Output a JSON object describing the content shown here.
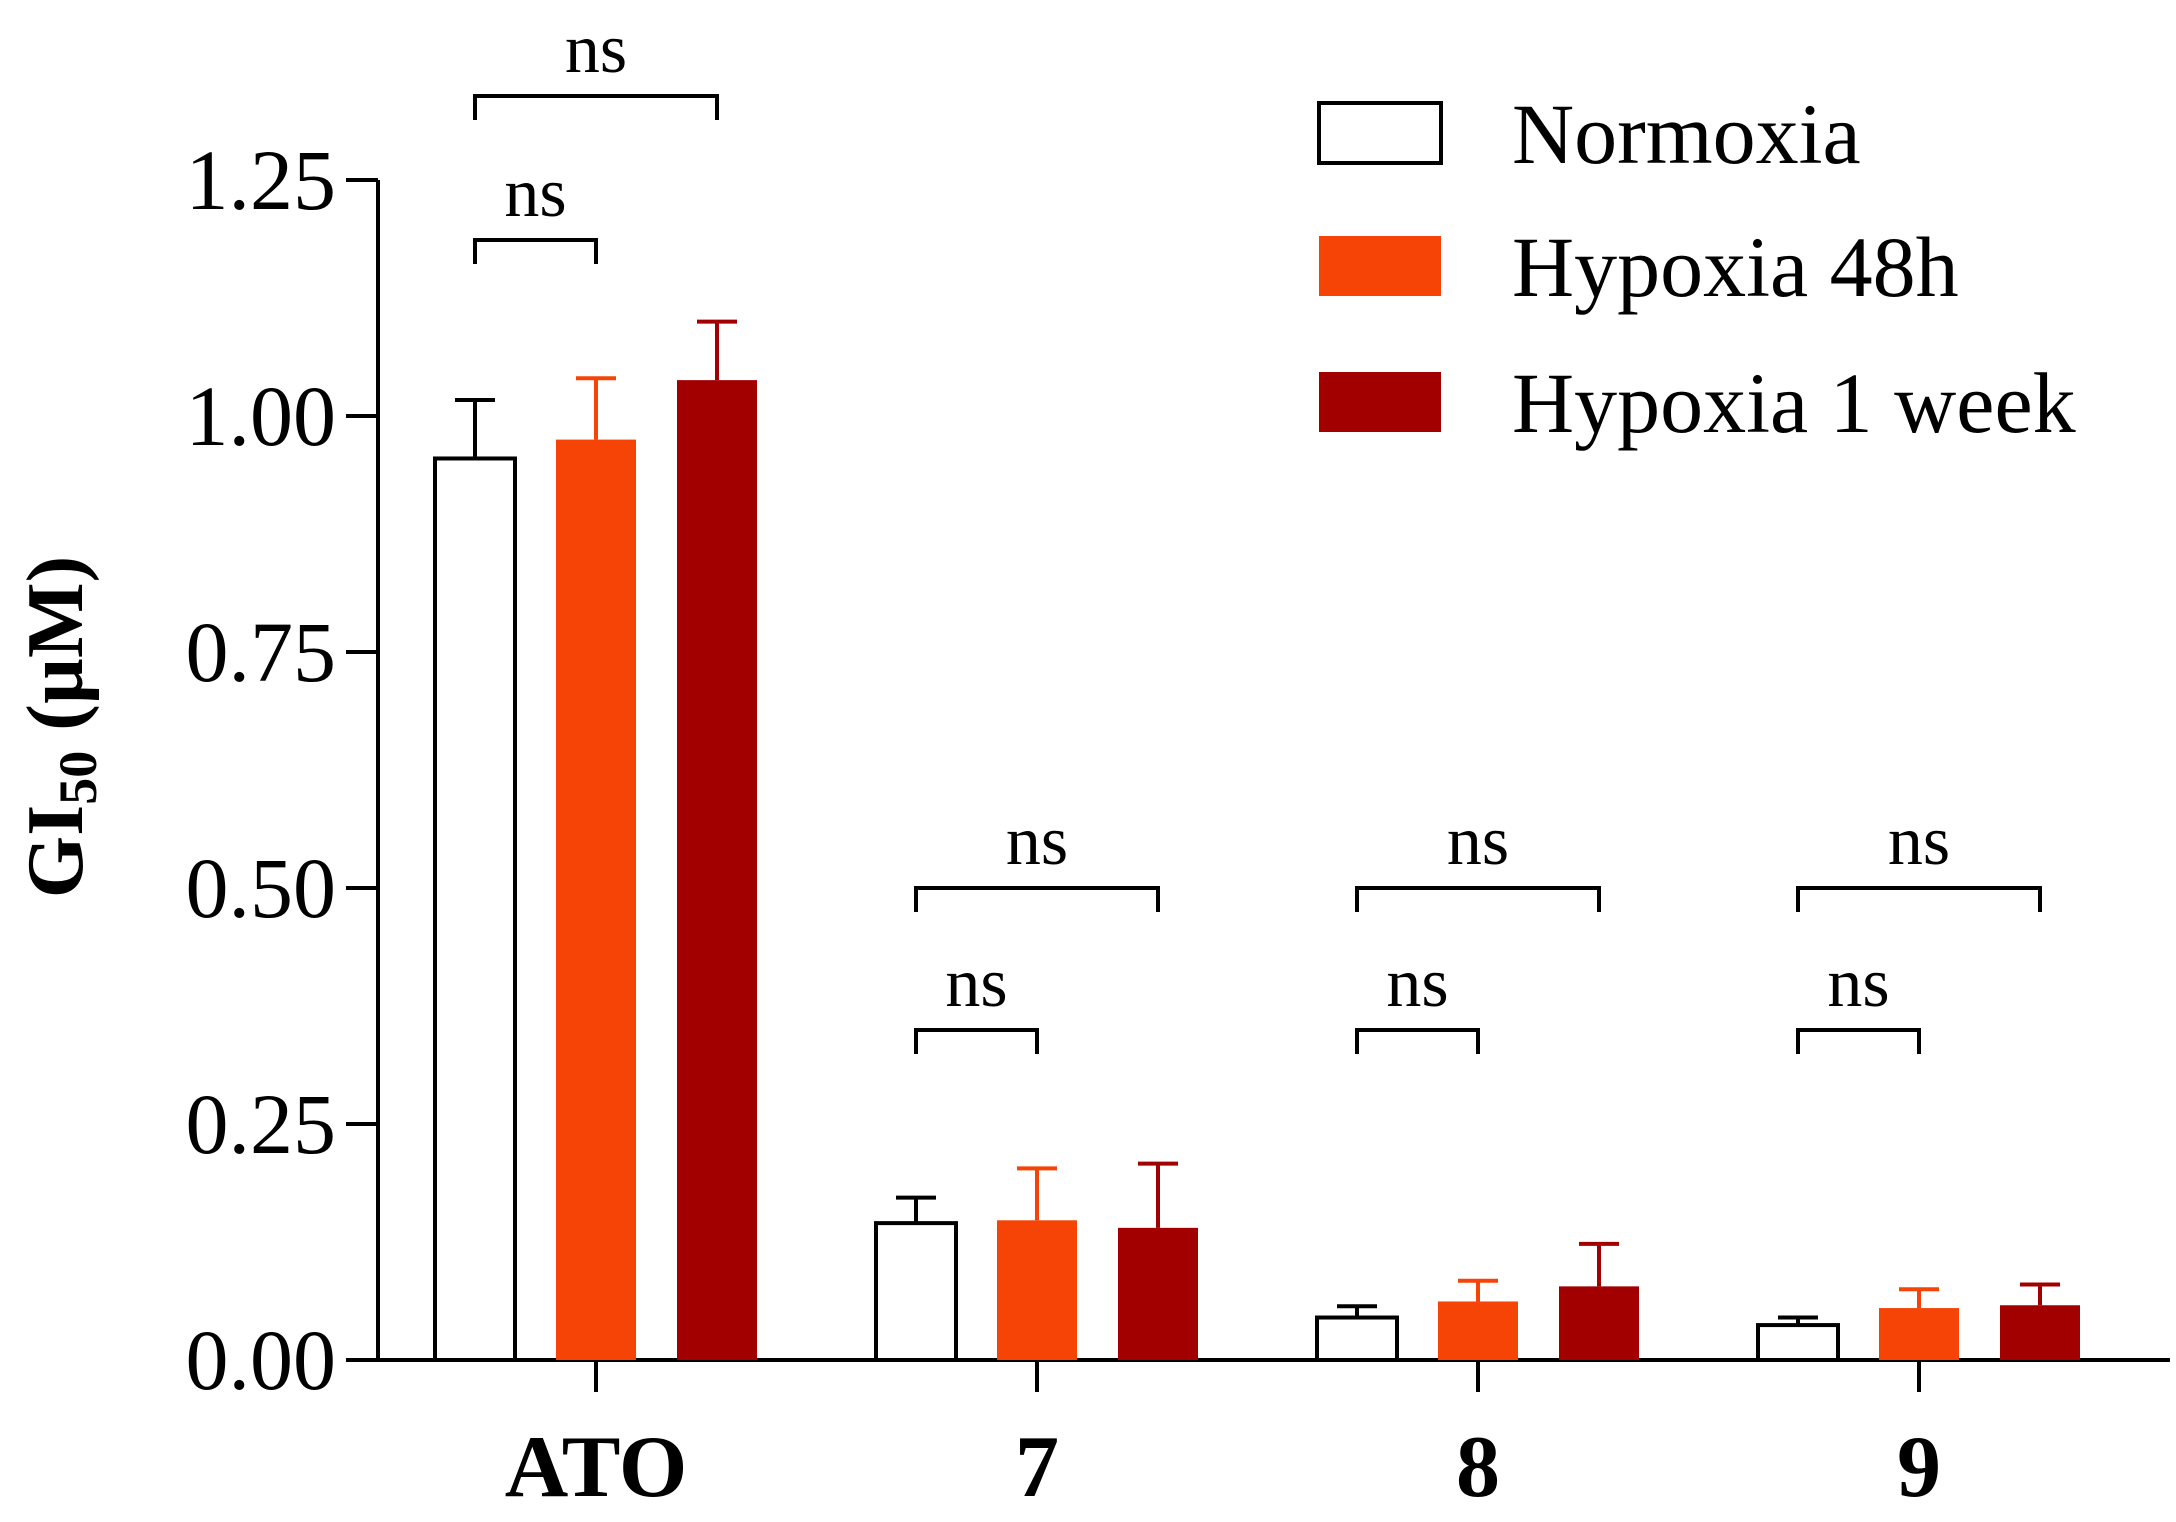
{
  "chart_data": {
    "type": "bar",
    "title": "",
    "xlabel": "",
    "ylabel": "GI50 (µM)",
    "ylabel_parts": {
      "main": "GI",
      "subscript": "50",
      "unit": " (µM)"
    },
    "categories": [
      "ATO",
      "7",
      "8",
      "9"
    ],
    "ylim": [
      0,
      1.25
    ],
    "yticks": [
      0.0,
      0.25,
      0.5,
      0.75,
      1.0,
      1.25
    ],
    "ytick_labels": [
      "0.00",
      "0.25",
      "0.50",
      "0.75",
      "1.00",
      "1.25"
    ],
    "grid": false,
    "legend_position": "top-right",
    "series": [
      {
        "name": "Normoxia",
        "color": "#ffffff",
        "values": [
          0.955,
          0.145,
          0.045,
          0.037
        ],
        "errors": [
          0.062,
          0.027,
          0.012,
          0.008
        ]
      },
      {
        "name": "Hypoxia 48h",
        "color": "#f54405",
        "values": [
          0.975,
          0.148,
          0.062,
          0.055
        ],
        "errors": [
          0.065,
          0.055,
          0.022,
          0.02
        ]
      },
      {
        "name": "Hypoxia 1 week",
        "color": "#a20000",
        "values": [
          1.038,
          0.14,
          0.078,
          0.058
        ],
        "errors": [
          0.062,
          0.068,
          0.045,
          0.022
        ]
      }
    ],
    "annotations": [
      {
        "category": "ATO",
        "from_series": 0,
        "to_series": 1,
        "label": "ns"
      },
      {
        "category": "ATO",
        "from_series": 0,
        "to_series": 2,
        "label": "ns"
      },
      {
        "category": "7",
        "from_series": 0,
        "to_series": 1,
        "label": "ns"
      },
      {
        "category": "7",
        "from_series": 0,
        "to_series": 2,
        "label": "ns"
      },
      {
        "category": "8",
        "from_series": 0,
        "to_series": 1,
        "label": "ns"
      },
      {
        "category": "8",
        "from_series": 0,
        "to_series": 2,
        "label": "ns"
      },
      {
        "category": "9",
        "from_series": 0,
        "to_series": 1,
        "label": "ns"
      },
      {
        "category": "9",
        "from_series": 0,
        "to_series": 2,
        "label": "ns"
      }
    ]
  }
}
